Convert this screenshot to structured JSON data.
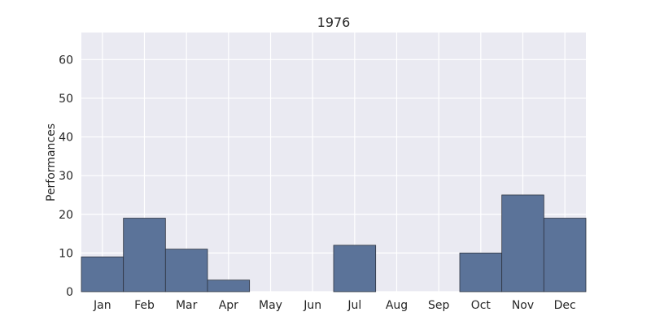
{
  "chart_data": {
    "type": "bar",
    "title": "1976",
    "xlabel": "",
    "ylabel": "Performances",
    "categories": [
      "Jan",
      "Feb",
      "Mar",
      "Apr",
      "May",
      "Jun",
      "Jul",
      "Aug",
      "Sep",
      "Oct",
      "Nov",
      "Dec"
    ],
    "values": [
      9,
      19,
      11,
      3,
      0,
      0,
      12,
      0,
      0,
      10,
      25,
      19
    ],
    "ylim": [
      0,
      67
    ],
    "yticks": [
      0,
      10,
      20,
      30,
      40,
      50,
      60
    ],
    "grid": true,
    "legend": "none",
    "colors": {
      "bar_fill": "#5b7399",
      "bar_edge": "#2e3440",
      "plot_background": "#eaeaf2",
      "grid": "#ffffff",
      "text": "#262626"
    }
  }
}
